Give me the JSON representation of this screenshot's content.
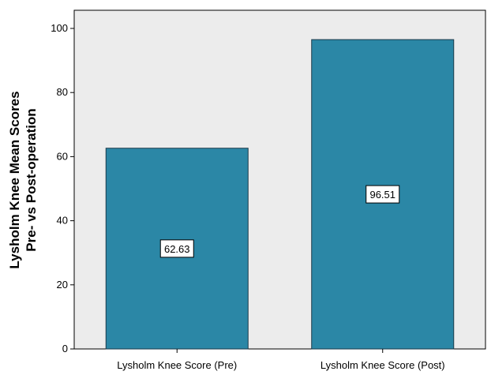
{
  "chart_data": {
    "type": "bar",
    "categories": [
      "Lysholm Knee Score (Pre)",
      "Lysholm Knee Score (Post)"
    ],
    "values": [
      62.63,
      96.51
    ],
    "data_labels": [
      "62.63",
      "96.51"
    ],
    "title": "",
    "xlabel": "",
    "ylabel_lines": [
      "Lysholm Knee Mean Scores",
      "Pre- vs Post-operation"
    ],
    "ylim": [
      0,
      100
    ],
    "yticks": [
      0,
      20,
      40,
      60,
      80,
      100
    ],
    "grid": false,
    "legend": "none",
    "colors": {
      "bar": "#2b87a6",
      "bar_edge": "#1b3a4a",
      "plot_bg": "#ececec"
    }
  }
}
